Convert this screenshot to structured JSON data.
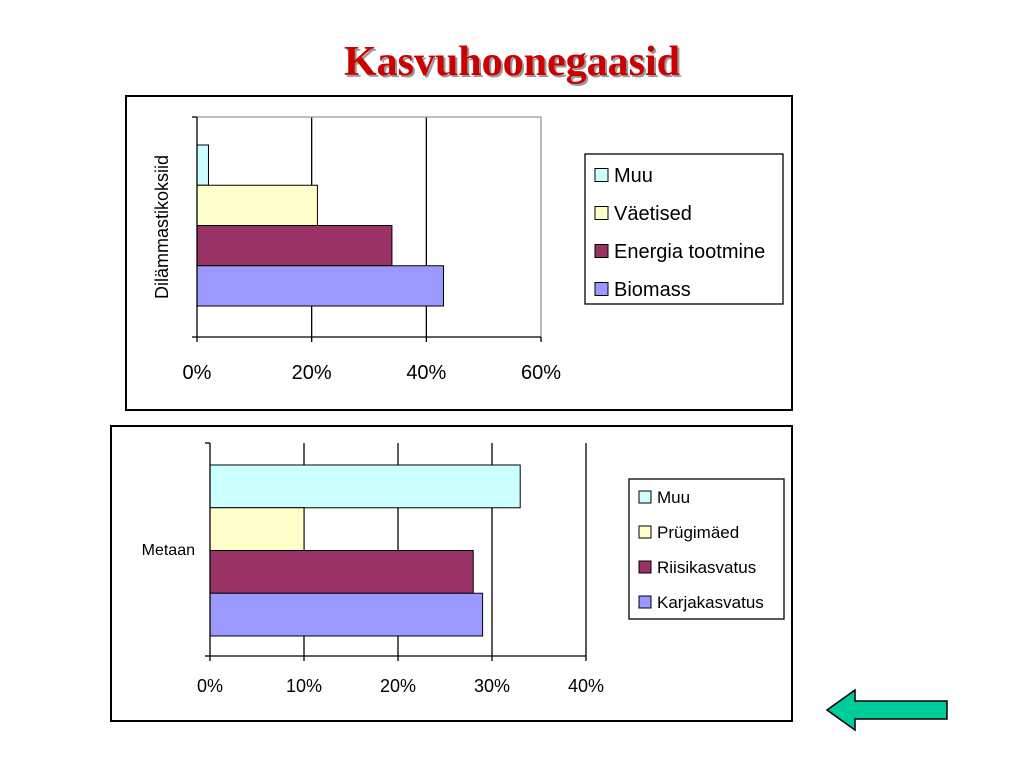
{
  "page": {
    "title": "Kasvuhoonegaasid"
  },
  "chart_data": [
    {
      "type": "bar",
      "orientation": "horizontal",
      "ylabel": "Dilämmastikoksiid",
      "xlim": [
        0,
        0.6
      ],
      "xticks": [
        "0%",
        "20%",
        "40%",
        "60%"
      ],
      "grid": true,
      "legend_position": "right",
      "series": [
        {
          "name": "Muu",
          "value": 0.02,
          "color": "#ccffff"
        },
        {
          "name": "Väetised",
          "value": 0.21,
          "color": "#ffffcc"
        },
        {
          "name": "Energia tootmine",
          "value": 0.34,
          "color": "#993366"
        },
        {
          "name": "Biomass",
          "value": 0.43,
          "color": "#9999ff"
        }
      ]
    },
    {
      "type": "bar",
      "orientation": "horizontal",
      "category": "Metaan",
      "xlim": [
        0,
        0.4
      ],
      "xticks": [
        "0%",
        "10%",
        "20%",
        "30%",
        "40%"
      ],
      "grid": true,
      "legend_position": "right",
      "series": [
        {
          "name": "Muu",
          "value": 0.33,
          "color": "#ccffff"
        },
        {
          "name": "Prügimäed",
          "value": 0.1,
          "color": "#ffffcc"
        },
        {
          "name": "Riisikasvatus",
          "value": 0.28,
          "color": "#993366"
        },
        {
          "name": "Karjakasvatus",
          "value": 0.29,
          "color": "#9999ff"
        }
      ]
    }
  ],
  "nav": {
    "back_icon": "left-arrow-icon",
    "back_color": "#00cc99"
  }
}
